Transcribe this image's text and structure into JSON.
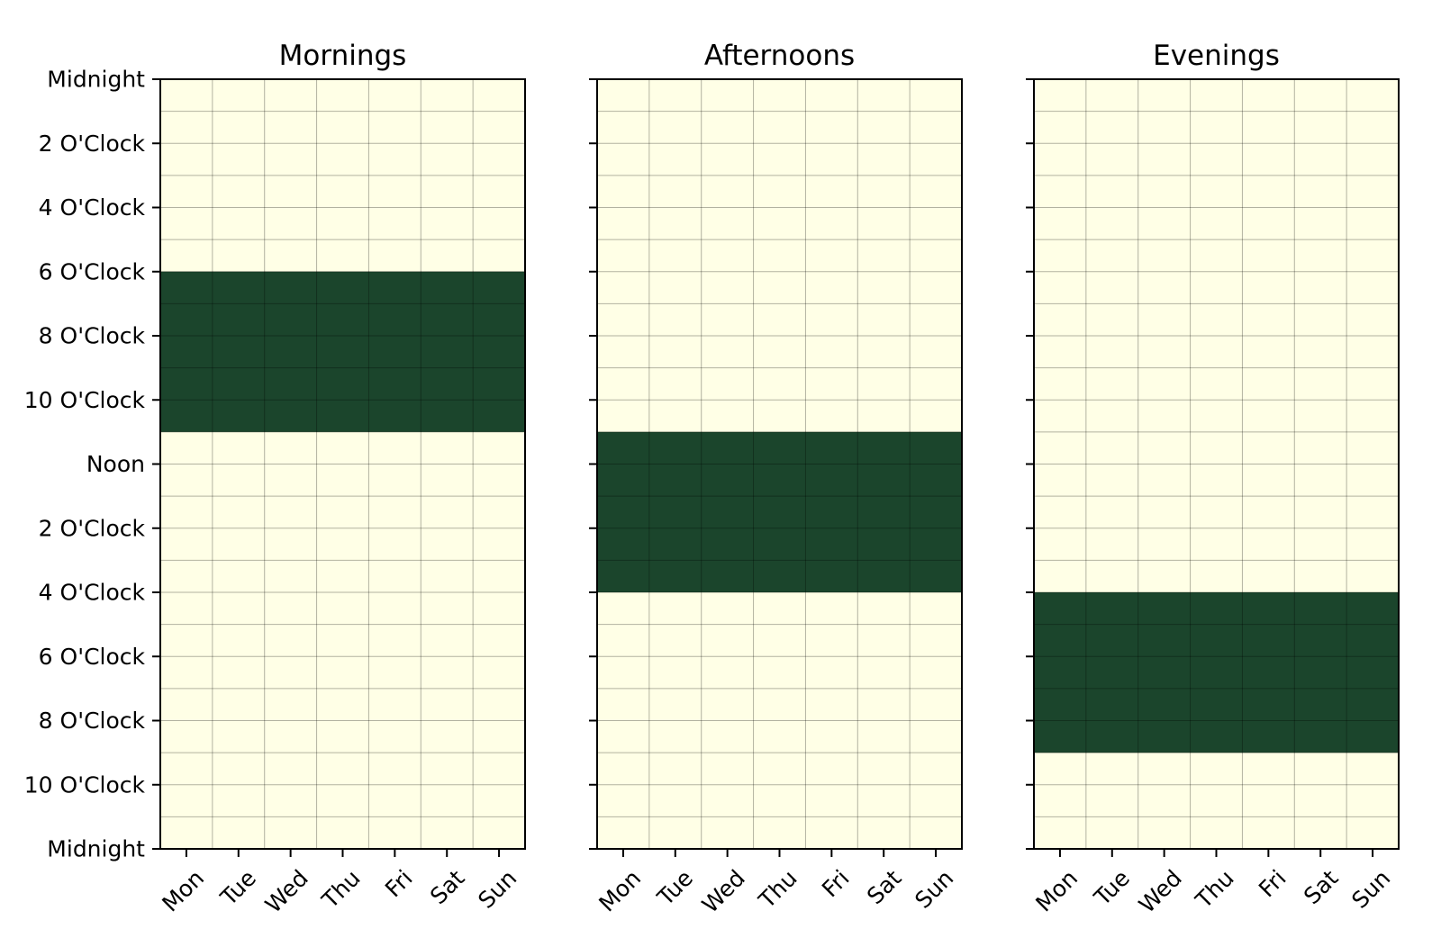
{
  "chart_data": {
    "type": "heatmap",
    "colors": {
      "background": "#ffffe6",
      "active": "#1b452c",
      "grid": "#000000",
      "axis": "#000000"
    },
    "days": [
      "Mon",
      "Tue",
      "Wed",
      "Thu",
      "Fri",
      "Sat",
      "Sun"
    ],
    "y_ticks": [
      {
        "hour": 0,
        "label": "Midnight"
      },
      {
        "hour": 2,
        "label": "2 O'Clock"
      },
      {
        "hour": 4,
        "label": "4 O'Clock"
      },
      {
        "hour": 6,
        "label": "6 O'Clock"
      },
      {
        "hour": 8,
        "label": "8 O'Clock"
      },
      {
        "hour": 10,
        "label": "10 O'Clock"
      },
      {
        "hour": 12,
        "label": "Noon"
      },
      {
        "hour": 14,
        "label": "2 O'Clock"
      },
      {
        "hour": 16,
        "label": "4 O'Clock"
      },
      {
        "hour": 18,
        "label": "6 O'Clock"
      },
      {
        "hour": 20,
        "label": "8 O'Clock"
      },
      {
        "hour": 22,
        "label": "10 O'Clock"
      },
      {
        "hour": 24,
        "label": "Midnight"
      }
    ],
    "ylim": [
      0,
      24
    ],
    "hour_grid": true,
    "panels": [
      {
        "title": "Mornings",
        "active_start_hour": 6,
        "active_end_hour": 11
      },
      {
        "title": "Afternoons",
        "active_start_hour": 11,
        "active_end_hour": 16
      },
      {
        "title": "Evenings",
        "active_start_hour": 16,
        "active_end_hour": 21
      }
    ]
  }
}
